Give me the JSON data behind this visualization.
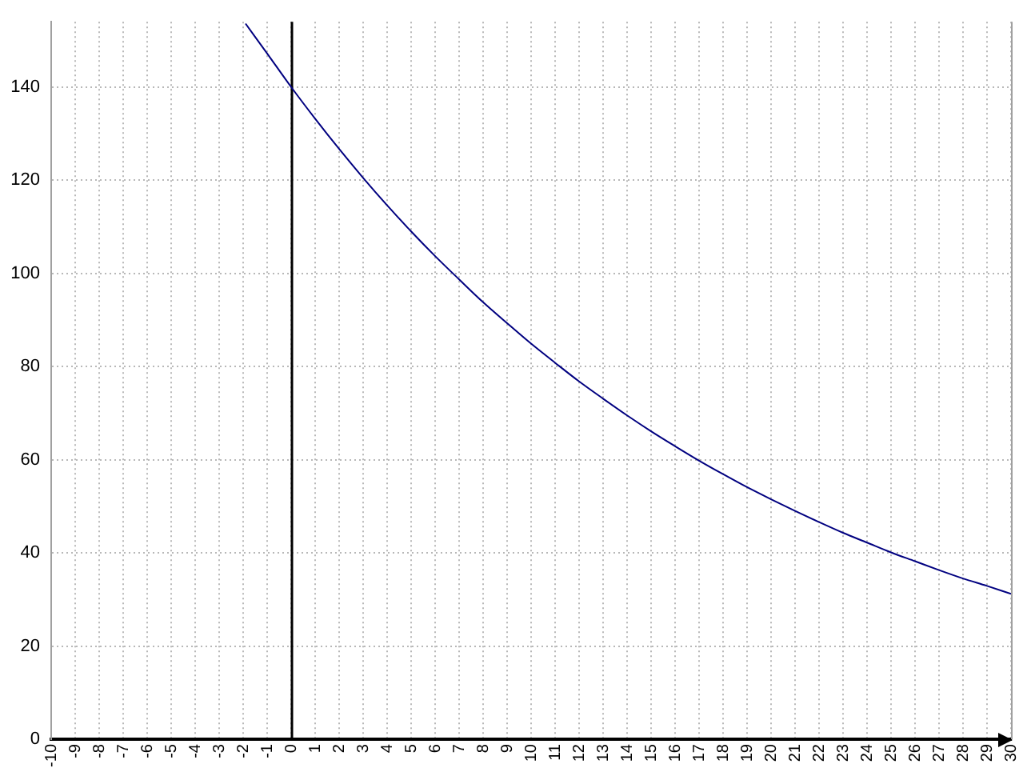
{
  "chart_data": {
    "type": "line",
    "x": [
      -1.9,
      -1,
      0,
      1,
      2,
      3,
      4,
      5,
      6,
      7,
      8,
      9,
      10,
      11,
      12,
      13,
      14,
      15,
      16,
      17,
      18,
      19,
      20,
      21,
      22,
      23,
      24,
      25,
      26,
      27,
      28,
      29,
      30
    ],
    "series": [
      {
        "color": "#000080",
        "values": [
          153.6,
          147.2,
          140,
          133.2,
          126.7,
          120.5,
          114.6,
          109.0,
          103.7,
          98.7,
          93.8,
          89.3,
          84.9,
          80.8,
          76.8,
          73.1,
          69.5,
          66.1,
          62.9,
          59.8,
          56.9,
          54.1,
          51.5,
          49.0,
          46.6,
          44.3,
          42.2,
          40.1,
          38.2,
          36.3,
          34.5,
          32.9,
          31.2
        ]
      }
    ],
    "xlim": [
      -10,
      30
    ],
    "xticks": [
      -10,
      -9,
      -8,
      -7,
      -6,
      -5,
      -4,
      -3,
      -2,
      -1,
      0,
      1,
      2,
      3,
      4,
      5,
      6,
      7,
      8,
      9,
      10,
      11,
      12,
      13,
      14,
      15,
      16,
      17,
      18,
      19,
      20,
      21,
      22,
      23,
      24,
      25,
      26,
      27,
      28,
      29,
      30
    ],
    "ylim": [
      0,
      154
    ],
    "yticks": [
      0,
      20,
      40,
      60,
      80,
      100,
      120,
      140
    ],
    "grid": true,
    "marker": "none",
    "line_style": "solid",
    "ref_lines": [
      {
        "axis": "x",
        "value": 0,
        "color": "#000000"
      }
    ]
  }
}
